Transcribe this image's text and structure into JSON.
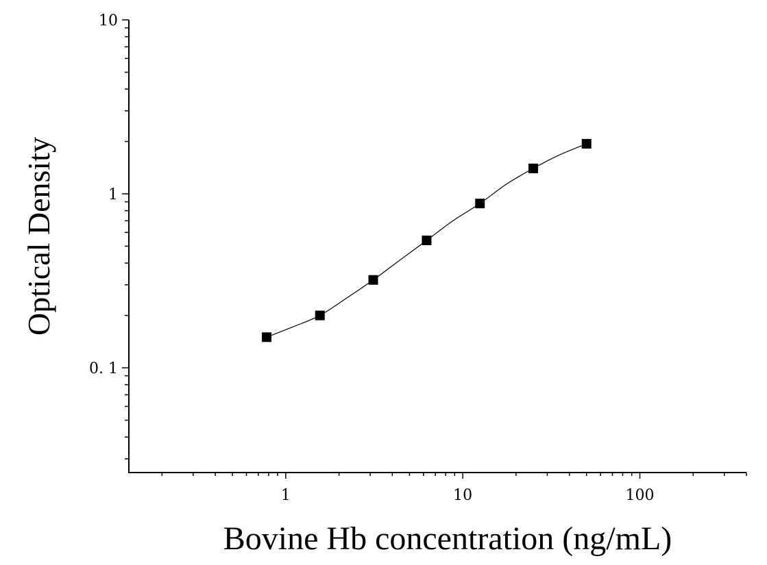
{
  "chart_data": {
    "type": "scatter",
    "title": "",
    "xlabel": "Bovine Hb concentration (ng/mL)",
    "ylabel": "Optical Density",
    "x_scale": "log",
    "y_scale": "log",
    "xlim": [
      0.13,
      400
    ],
    "ylim": [
      0.025,
      10
    ],
    "x_ticks": [
      {
        "value": 1,
        "label": "1"
      },
      {
        "value": 10,
        "label": "10"
      },
      {
        "value": 100,
        "label": "100"
      }
    ],
    "y_ticks": [
      {
        "value": 0.1,
        "label": "0. 1"
      },
      {
        "value": 1,
        "label": "1"
      },
      {
        "value": 10,
        "label": "10"
      }
    ],
    "grid": false,
    "legend": "none",
    "marker": "square",
    "color": "#000000",
    "series": [
      {
        "x": [
          0.78,
          1.56,
          3.12,
          6.25,
          12.5,
          25,
          50
        ],
        "y": [
          0.15,
          0.2,
          0.32,
          0.54,
          0.88,
          1.4,
          1.94
        ]
      }
    ],
    "fit_curve": {
      "x": [
        0.78,
        1.1,
        1.56,
        2.2,
        3.12,
        4.4,
        6.25,
        8.8,
        12.5,
        17.7,
        25,
        35,
        50
      ],
      "y": [
        0.15,
        0.172,
        0.2,
        0.251,
        0.32,
        0.415,
        0.54,
        0.7,
        0.88,
        1.14,
        1.4,
        1.67,
        1.94
      ]
    }
  }
}
